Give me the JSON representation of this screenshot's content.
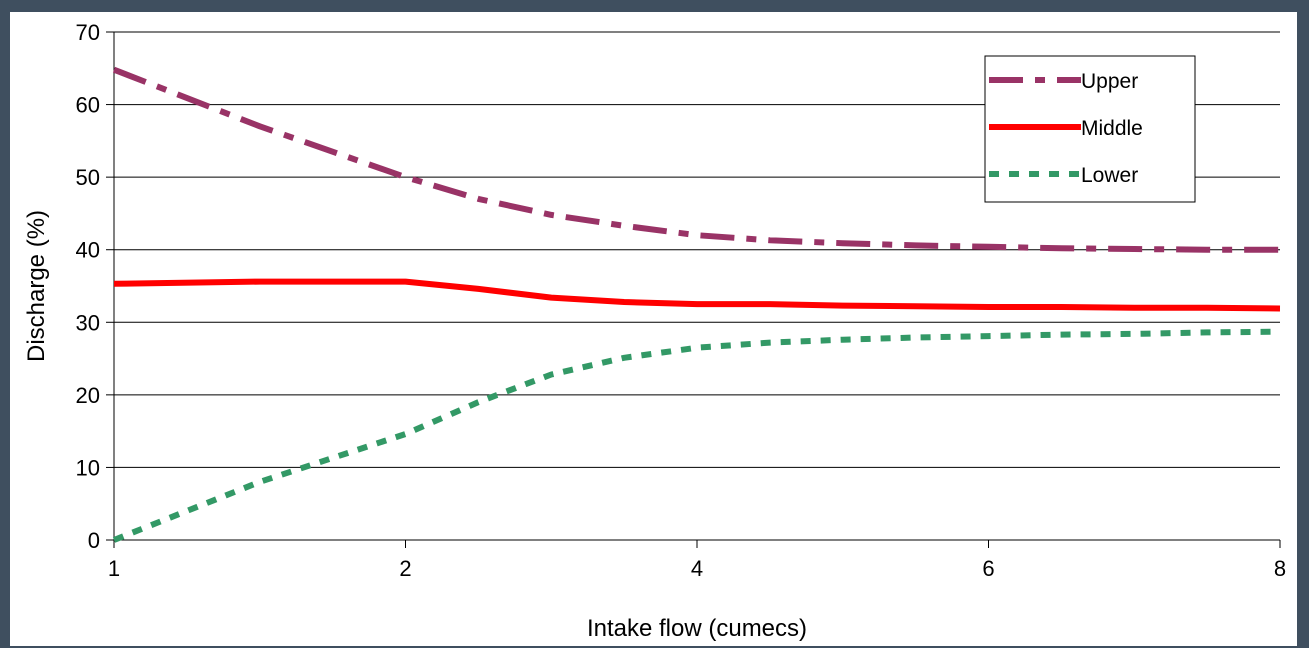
{
  "chart_data": {
    "type": "line",
    "xlabel": "Intake flow (cumecs)",
    "ylabel": "Discharge (%)",
    "x_ticks": [
      1,
      2,
      4,
      6,
      8
    ],
    "y_ticks": [
      0,
      10,
      20,
      30,
      40,
      50,
      60,
      70
    ],
    "ylim": [
      0,
      70
    ],
    "grid": "horizontal",
    "legend_position": "top-right",
    "series": [
      {
        "name": "Upper",
        "color": "#993366",
        "style": "dash-dot",
        "x": [
          1,
          1.5,
          2,
          2.5,
          3,
          3.5,
          4,
          4.5,
          5,
          5.5,
          6,
          6.5,
          7,
          7.5,
          8
        ],
        "values": [
          64.8,
          57.0,
          50.0,
          47.0,
          44.8,
          43.3,
          42.0,
          41.3,
          40.9,
          40.6,
          40.4,
          40.2,
          40.1,
          40.0,
          40.0
        ]
      },
      {
        "name": "Middle",
        "color": "#ff0000",
        "style": "solid",
        "x": [
          1,
          1.5,
          2,
          2.5,
          3,
          3.5,
          4,
          4.5,
          5,
          5.5,
          6,
          6.5,
          7,
          7.5,
          8
        ],
        "values": [
          35.3,
          35.6,
          35.6,
          34.6,
          33.4,
          32.8,
          32.5,
          32.5,
          32.3,
          32.2,
          32.1,
          32.1,
          32.0,
          32.0,
          31.9
        ]
      },
      {
        "name": "Lower",
        "color": "#339966",
        "style": "dashed",
        "x": [
          1,
          1.5,
          2,
          2.5,
          3,
          3.5,
          4,
          4.5,
          5,
          5.5,
          6,
          6.5,
          7,
          7.5,
          8
        ],
        "values": [
          0.0,
          8.0,
          14.6,
          19.0,
          22.8,
          25.1,
          26.5,
          27.2,
          27.6,
          27.9,
          28.1,
          28.3,
          28.4,
          28.6,
          28.7
        ]
      }
    ]
  }
}
